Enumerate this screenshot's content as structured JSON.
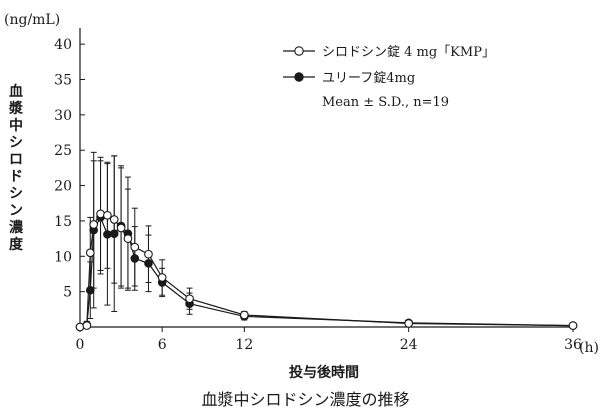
{
  "caption": "血漿中シロドシン濃度の推移",
  "chart_data": {
    "type": "line",
    "ylabel": "血漿中シロドシン濃度",
    "yunit": "(ng/mL)",
    "xlabel": "投与後時間",
    "xunit": "(h)",
    "xlim": [
      0,
      36
    ],
    "ylim": [
      0,
      42
    ],
    "xticks": [
      0,
      6,
      12,
      24,
      36
    ],
    "yticks": [
      5,
      10,
      15,
      20,
      25,
      30,
      35,
      40
    ],
    "grid": false,
    "legend_position": "top-right",
    "legend_note": "Mean ± S.D., n=19",
    "x": [
      0,
      0.5,
      0.75,
      1,
      1.5,
      2,
      2.5,
      3,
      3.5,
      4,
      5,
      6,
      8,
      12,
      24,
      36
    ],
    "series": [
      {
        "name": "シロドシン錠 4 mg「KMP」",
        "marker": "open-circle",
        "values": [
          0,
          0.2,
          10.5,
          14.5,
          16.0,
          15.8,
          15.2,
          14.0,
          12.5,
          11.3,
          10.3,
          7.0,
          4.0,
          1.7,
          0.5,
          0.2
        ],
        "sd": [
          0,
          0.5,
          5.0,
          9.0,
          8.0,
          7.5,
          9.0,
          8.5,
          7.0,
          5.5,
          4.0,
          2.5,
          1.5,
          0.5,
          0.2,
          0.1
        ]
      },
      {
        "name": "ユリーフ錠4mg",
        "marker": "filled-circle",
        "values": [
          0,
          0.3,
          5.2,
          13.7,
          15.5,
          13.1,
          13.2,
          14.3,
          13.2,
          9.7,
          9.0,
          6.3,
          3.3,
          1.5,
          0.6,
          0.2
        ],
        "sd": [
          0,
          0.5,
          4.0,
          11.0,
          8.0,
          10.0,
          11.0,
          8.5,
          8.0,
          4.5,
          4.0,
          2.0,
          1.5,
          0.5,
          0.2,
          0.1
        ]
      }
    ]
  }
}
